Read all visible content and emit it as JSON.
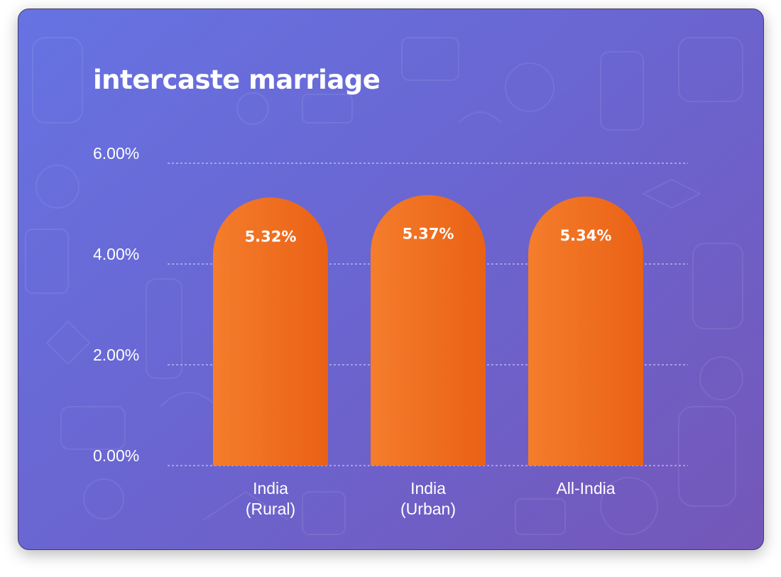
{
  "colors": {
    "bar_light": "#f47d2c",
    "bar_dark": "#ea6115",
    "text": "#ffffff",
    "grid": "#dcdcf5"
  },
  "chart_data": {
    "type": "bar",
    "title": "intercaste marriage",
    "categories": [
      [
        "India",
        "(Rural)"
      ],
      [
        "India",
        "(Urban)"
      ],
      [
        "All-India"
      ]
    ],
    "values": [
      5.32,
      5.37,
      5.34
    ],
    "data_labels": [
      "5.32%",
      "5.37%",
      "5.34%"
    ],
    "ytick_labels": [
      "0.00%",
      "2.00%",
      "4.00%",
      "6.00%"
    ],
    "ytick_values": [
      0,
      2,
      4,
      6
    ],
    "ylim": [
      0,
      6
    ],
    "xlabel": "",
    "ylabel": "",
    "grid": true,
    "grid_style": "dashed",
    "legend": "none"
  }
}
